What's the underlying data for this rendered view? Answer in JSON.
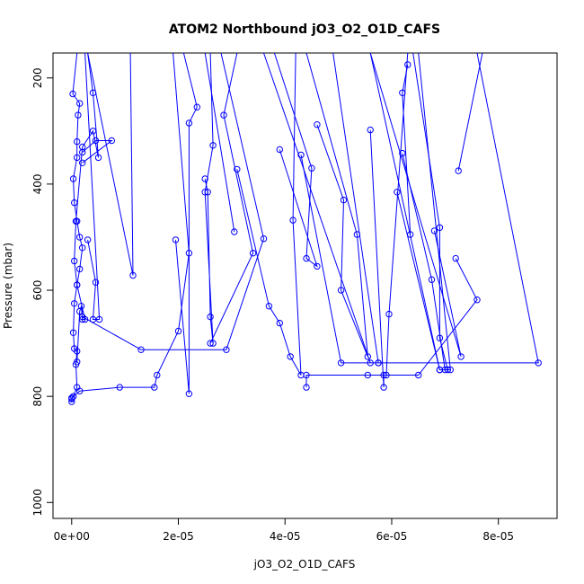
{
  "chart_data": {
    "type": "line",
    "title": "ATOM2 Northbound jO3_O2_O1D_CAFS",
    "xlabel": "jO3_O2_O1D_CAFS",
    "ylabel": "Pressure (mbar)",
    "xlim": [
      -3.5e-06,
      9.1e-05
    ],
    "ylim": [
      1030,
      153
    ],
    "y_inverted": true,
    "x_ticks": [
      0,
      2e-05,
      4e-05,
      6e-05,
      8e-05
    ],
    "x_tick_labels": [
      "0e+00",
      "2e-05",
      "4e-05",
      "6e-05",
      "8e-05"
    ],
    "y_ticks": [
      200,
      400,
      600,
      800,
      1000
    ],
    "y_tick_labels": [
      "200",
      "400",
      "600",
      "800",
      "1000"
    ],
    "grid": false,
    "series_color": "#0000ff",
    "marker": "open-circle",
    "series": [
      {
        "values": [
          [
            0.0,
            810
          ],
          [
            0.0,
            805
          ],
          [
            3e-07,
            800
          ],
          [
            1e-06,
            783
          ],
          [
            8e-07,
            740
          ],
          [
            1e-06,
            715
          ],
          [
            5e-07,
            710
          ],
          [
            3e-07,
            680
          ],
          [
            5e-07,
            625
          ],
          [
            1e-06,
            590
          ],
          [
            1.5e-06,
            560
          ],
          [
            2e-06,
            520
          ],
          [
            1.5e-06,
            500
          ],
          [
            1e-06,
            470
          ],
          [
            5e-07,
            435
          ],
          [
            3e-07,
            390
          ],
          [
            1e-06,
            350
          ],
          [
            1e-06,
            320
          ],
          [
            1.2e-06,
            270
          ],
          [
            1.5e-06,
            248
          ],
          [
            2e-07,
            230
          ],
          [
            1e-06,
            153
          ]
        ]
      },
      {
        "values": [
          [
            1e-06,
            735
          ],
          [
            1.5e-06,
            640
          ],
          [
            1.8e-06,
            630
          ],
          [
            2e-06,
            655
          ],
          [
            2.5e-06,
            655
          ],
          [
            1e-06,
            590
          ],
          [
            5e-07,
            545
          ],
          [
            8e-07,
            470
          ],
          [
            2e-06,
            330
          ],
          [
            4e-06,
            300
          ],
          [
            5e-06,
            350
          ],
          [
            4e-06,
            228
          ],
          [
            3e-06,
            153
          ]
        ]
      },
      {
        "values": [
          [
            2e-06,
            340
          ],
          [
            4.5e-06,
            318
          ],
          [
            7.5e-06,
            318
          ],
          [
            2e-06,
            360
          ]
        ]
      },
      {
        "values": [
          [
            3e-06,
            505
          ],
          [
            4.5e-06,
            585
          ],
          [
            4e-06,
            655
          ],
          [
            5.2e-06,
            655
          ],
          [
            2.5e-06,
            153
          ]
        ]
      },
      {
        "values": [
          [
            3e-06,
            153
          ],
          [
            1.15e-05,
            572
          ],
          [
            1.1e-05,
            153
          ]
        ]
      },
      {
        "values": [
          [
            0.0,
            803
          ],
          [
            1.5e-06,
            790
          ],
          [
            9e-06,
            783
          ],
          [
            1.55e-05,
            783
          ],
          [
            1.6e-05,
            760
          ],
          [
            2e-05,
            677
          ],
          [
            2.2e-05,
            530
          ],
          [
            1.9e-05,
            153
          ]
        ]
      },
      {
        "values": [
          [
            2e-06,
            650
          ],
          [
            1.3e-05,
            712
          ],
          [
            2.9e-05,
            712
          ],
          [
            3.6e-05,
            503
          ],
          [
            2.8e-05,
            153
          ]
        ]
      },
      {
        "values": [
          [
            1.95e-05,
            505
          ],
          [
            2.2e-05,
            795
          ],
          [
            2.2e-05,
            285
          ],
          [
            2.35e-05,
            255
          ],
          [
            2.1e-05,
            153
          ]
        ]
      },
      {
        "values": [
          [
            2.5e-05,
            390
          ],
          [
            2.55e-05,
            415
          ],
          [
            2.6e-05,
            650
          ],
          [
            2.65e-05,
            700
          ],
          [
            2.5e-05,
            415
          ],
          [
            2.65e-05,
            327
          ],
          [
            2.6e-05,
            153
          ]
        ]
      },
      {
        "values": [
          [
            2.6e-05,
            700
          ],
          [
            3.4e-05,
            530
          ],
          [
            2.85e-05,
            270
          ],
          [
            3.1e-05,
            153
          ]
        ]
      },
      {
        "values": [
          [
            3.1e-05,
            372
          ],
          [
            3.7e-05,
            630
          ],
          [
            3.9e-05,
            662
          ],
          [
            4.1e-05,
            725
          ],
          [
            4.3e-05,
            760
          ],
          [
            4.15e-05,
            468
          ],
          [
            4.2e-05,
            153
          ]
        ]
      },
      {
        "values": [
          [
            3.05e-05,
            490
          ],
          [
            2.5e-05,
            153
          ]
        ]
      },
      {
        "values": [
          [
            4.4e-05,
            783
          ],
          [
            4.4e-05,
            760
          ],
          [
            5.55e-05,
            760
          ],
          [
            5.9e-05,
            760
          ],
          [
            5.95e-05,
            645
          ],
          [
            6.3e-05,
            153
          ]
        ]
      },
      {
        "values": [
          [
            3.9e-05,
            335
          ],
          [
            4.6e-05,
            555
          ],
          [
            4.4e-05,
            540
          ],
          [
            4.5e-05,
            370
          ],
          [
            3.8e-05,
            153
          ]
        ]
      },
      {
        "values": [
          [
            4.3e-05,
            345
          ],
          [
            5.05e-05,
            737
          ],
          [
            8.75e-05,
            737
          ],
          [
            7.6e-05,
            153
          ]
        ]
      },
      {
        "values": [
          [
            4.6e-05,
            288
          ],
          [
            5.1e-05,
            430
          ],
          [
            5.05e-05,
            600
          ],
          [
            5.55e-05,
            725
          ],
          [
            5.35e-05,
            495
          ],
          [
            4.4e-05,
            153
          ]
        ]
      },
      {
        "values": [
          [
            5.6e-05,
            298
          ],
          [
            5.85e-05,
            783
          ],
          [
            5.85e-05,
            760
          ],
          [
            6.5e-05,
            760
          ],
          [
            7.6e-05,
            618
          ],
          [
            7.2e-05,
            540
          ]
        ]
      },
      {
        "values": [
          [
            5.75e-05,
            737
          ],
          [
            5.75e-05,
            737
          ],
          [
            4.9e-05,
            153
          ]
        ]
      },
      {
        "values": [
          [
            6.1e-05,
            415
          ],
          [
            6.9e-05,
            750
          ],
          [
            7.05e-05,
            750
          ],
          [
            6.9e-05,
            690
          ],
          [
            6.9e-05,
            482
          ],
          [
            6.4e-05,
            153
          ]
        ]
      },
      {
        "values": [
          [
            6.2e-05,
            342
          ],
          [
            6.75e-05,
            580
          ],
          [
            7e-05,
            750
          ],
          [
            7.1e-05,
            750
          ],
          [
            6.5e-05,
            153
          ]
        ]
      },
      {
        "values": [
          [
            6.35e-05,
            495
          ],
          [
            6.2e-05,
            228
          ],
          [
            6.3e-05,
            175
          ]
        ]
      },
      {
        "values": [
          [
            6.8e-05,
            488
          ],
          [
            7.3e-05,
            725
          ],
          [
            5.6e-05,
            153
          ]
        ]
      },
      {
        "values": [
          [
            7.25e-05,
            375
          ],
          [
            7.7e-05,
            153
          ]
        ]
      },
      {
        "values": [
          [
            5.6e-05,
            153
          ],
          [
            6.9e-05,
            750
          ]
        ]
      },
      {
        "values": [
          [
            3.6e-05,
            153
          ],
          [
            5.6e-05,
            737
          ]
        ]
      }
    ]
  }
}
